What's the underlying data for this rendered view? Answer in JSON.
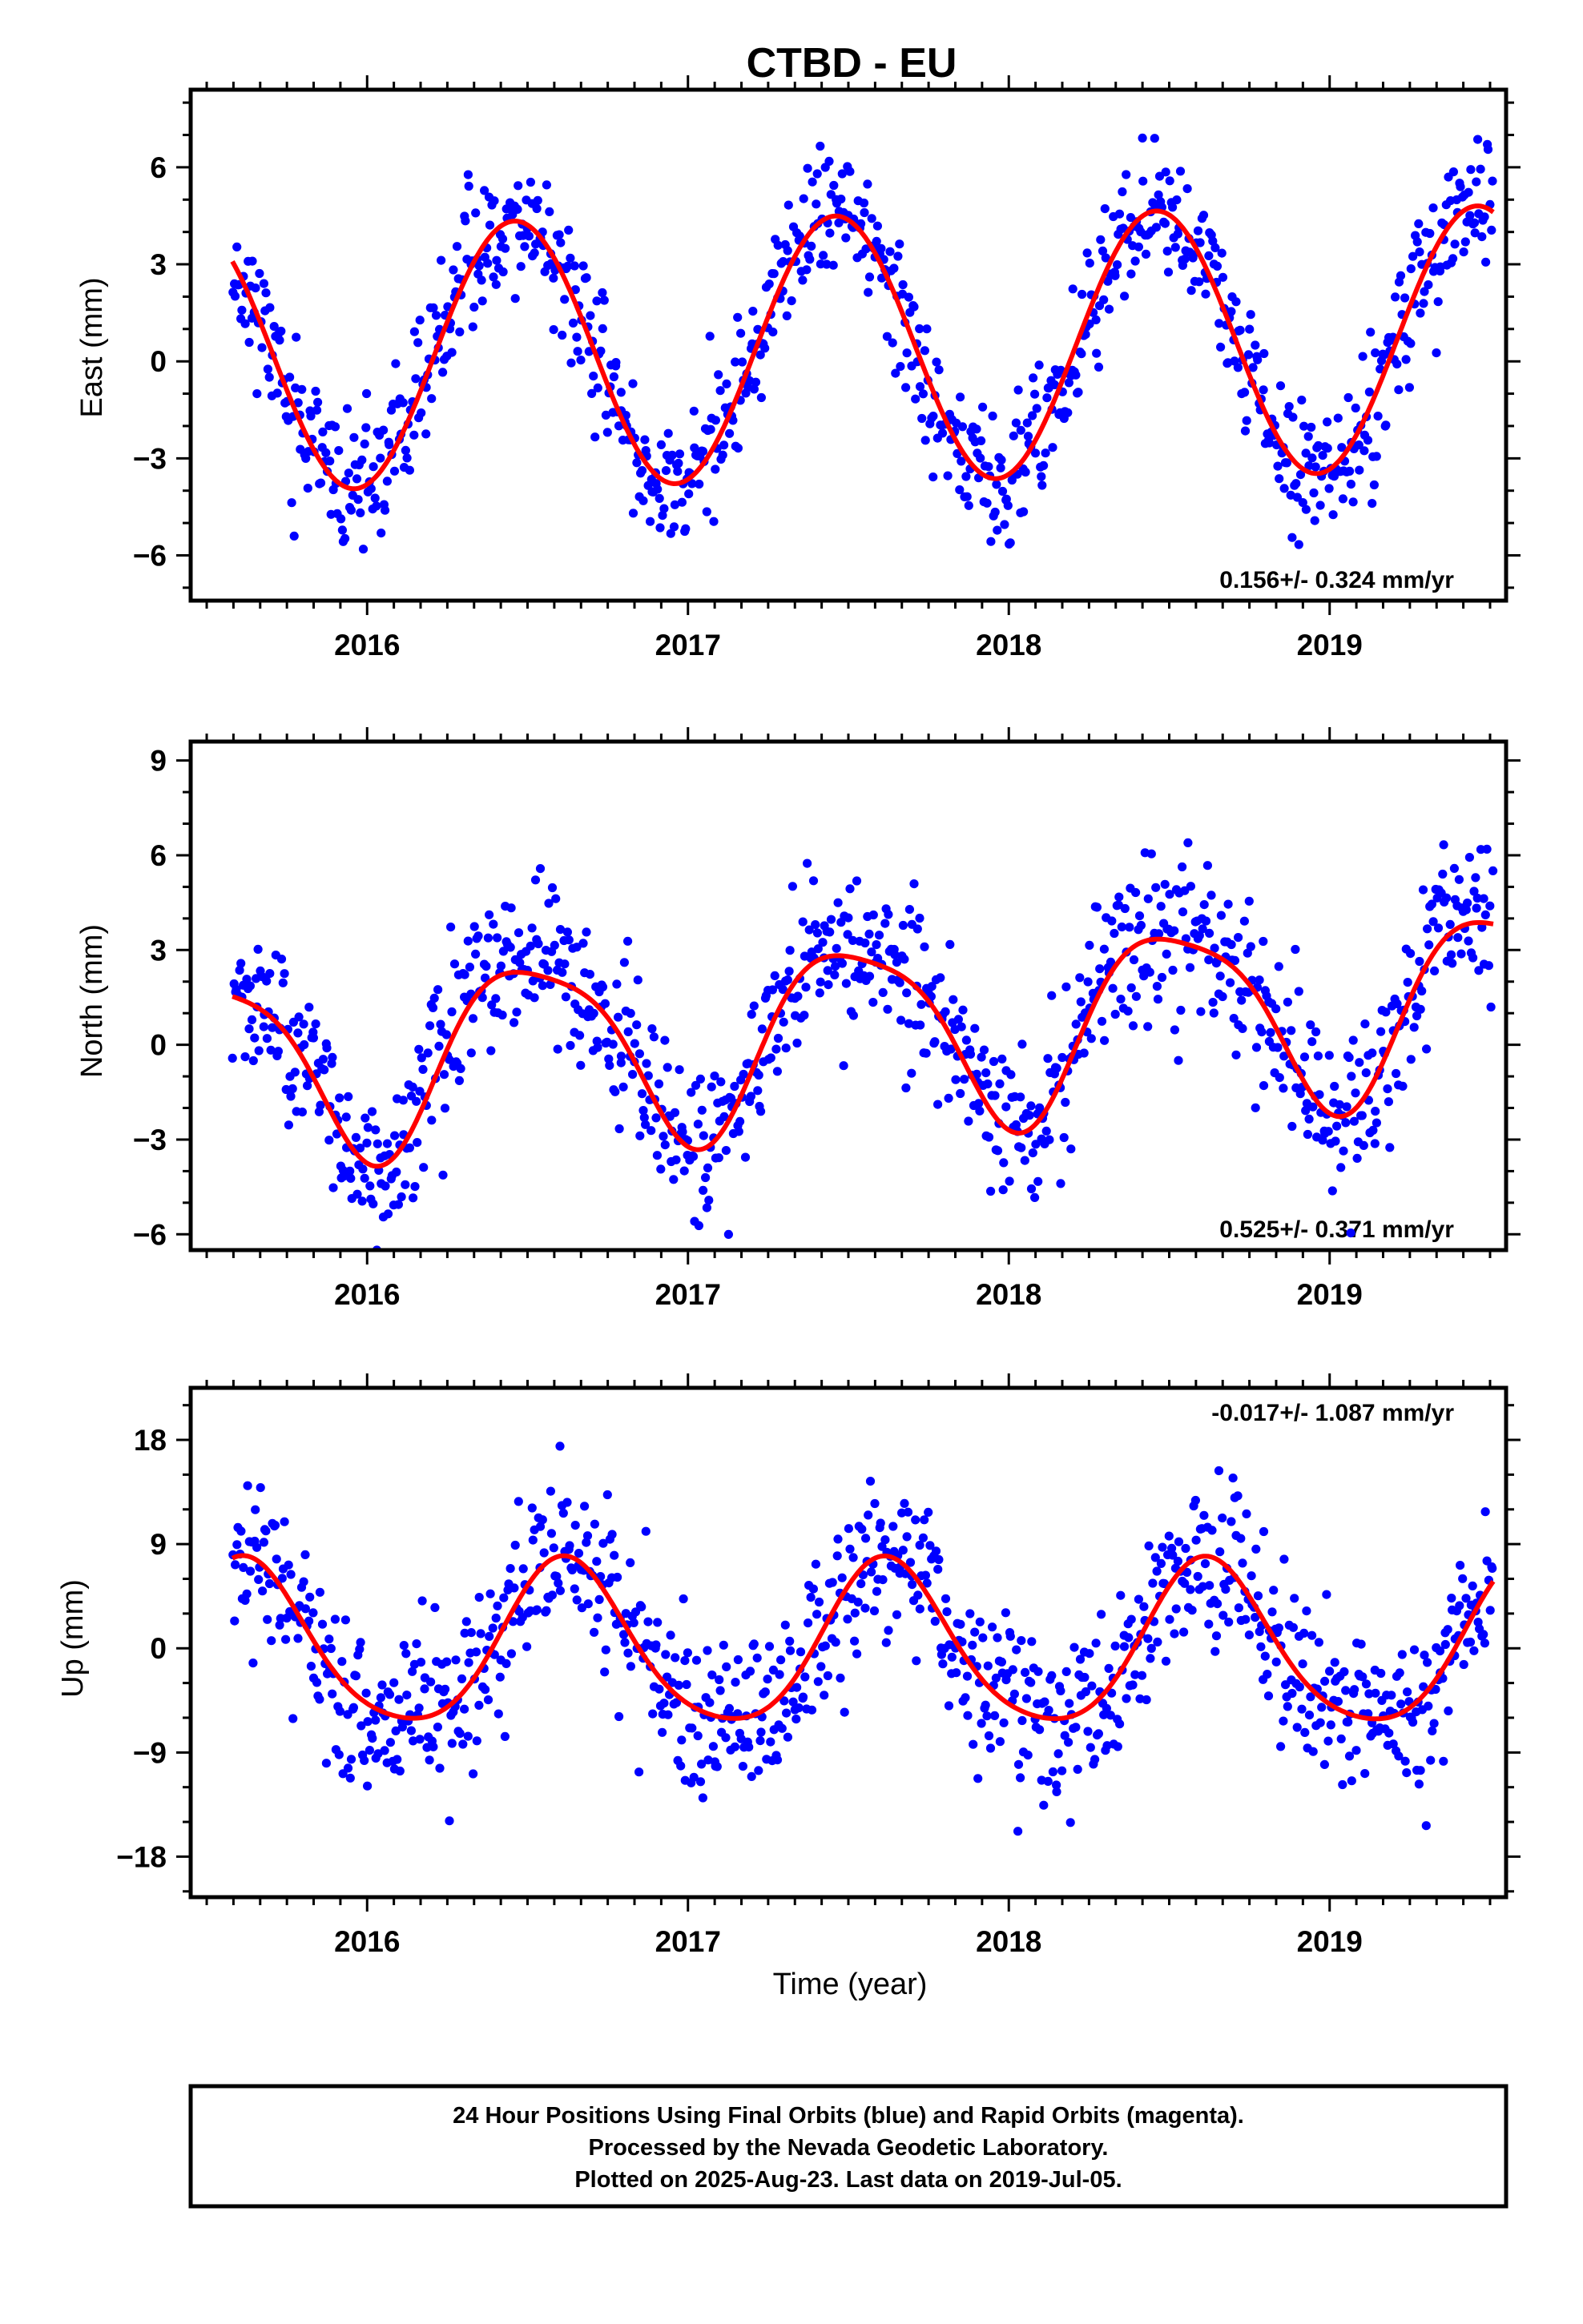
{
  "page": {
    "title": "CTBD - EU"
  },
  "footer": {
    "lines": [
      "24 Hour Positions Using Final Orbits (blue) and Rapid Orbits (magenta).",
      "Processed by the Nevada Geodetic Laboratory.",
      "Plotted on 2025-Aug-23. Last data on 2019-Jul-05."
    ]
  },
  "colors": {
    "final_orbits": "#0000ff",
    "fit_line": "#ff0000",
    "frame": "#000000"
  },
  "chart_data": [
    {
      "type": "scatter",
      "title": "CTBD - EU",
      "xlabel": "",
      "ylabel": "East (mm)",
      "xlim": [
        2015.45,
        2019.55
      ],
      "ylim": [
        -7.4,
        8.4
      ],
      "xticks": [
        2016,
        2017,
        2018,
        2019
      ],
      "yticks": [
        -6,
        -3,
        0,
        3,
        6
      ],
      "ytick_labels": [
        "−6",
        "−3",
        "0",
        "3",
        "6"
      ],
      "rate_label": "0.156+/- 0.324 mm/yr",
      "rate_position": "bottom-right",
      "legend": "none",
      "grid": false,
      "model": {
        "offset": 0.4,
        "velocity": 0.156,
        "annual_amplitude": 4.1,
        "annual_peak": 0.46,
        "semiannual_amplitude": 0.0,
        "semiannual_peak": 0.0,
        "ref_epoch": 2017.5
      },
      "scatter": {
        "sigma": 1.05,
        "count": 950,
        "seed": 11,
        "start": 2015.58,
        "end": 2019.51
      },
      "series": [
        {
          "name": "",
          "role": "daily_positions",
          "color": "#0000ff"
        },
        {
          "name": "",
          "role": "model_fit",
          "color": "#ff0000"
        }
      ]
    },
    {
      "type": "scatter",
      "xlabel": "",
      "ylabel": "North (mm)",
      "xlim": [
        2015.45,
        2019.55
      ],
      "ylim": [
        -6.5,
        9.6
      ],
      "xticks": [
        2016,
        2017,
        2018,
        2019
      ],
      "yticks": [
        -6,
        -3,
        0,
        3,
        6,
        9
      ],
      "ytick_labels": [
        "−6",
        "−3",
        "0",
        "3",
        "6",
        "9"
      ],
      "rate_label": "0.525+/- 0.371 mm/yr",
      "rate_position": "bottom-right",
      "legend": "none",
      "grid": false,
      "model": {
        "offset": 0.4,
        "velocity": 0.525,
        "annual_amplitude": 2.9,
        "annual_peak": 0.52,
        "semiannual_amplitude": 0.6,
        "semiannual_peak": 0.3,
        "ref_epoch": 2017.5
      },
      "scatter": {
        "sigma": 1.25,
        "count": 950,
        "seed": 23,
        "start": 2015.58,
        "end": 2019.51
      },
      "series": [
        {
          "name": "",
          "role": "daily_positions",
          "color": "#0000ff"
        },
        {
          "name": "",
          "role": "model_fit",
          "color": "#ff0000"
        }
      ]
    },
    {
      "type": "scatter",
      "xlabel": "Time (year)",
      "ylabel": "Up (mm)",
      "xlim": [
        2015.45,
        2019.55
      ],
      "ylim": [
        -21.5,
        22.5
      ],
      "xticks": [
        2016,
        2017,
        2018,
        2019
      ],
      "yticks": [
        -18,
        -9,
        0,
        9,
        18
      ],
      "ytick_labels": [
        "−18",
        "−9",
        "0",
        "9",
        "18"
      ],
      "rate_label": "-0.017+/- 1.087 mm/yr",
      "rate_position": "top-right",
      "legend": "none",
      "grid": false,
      "model": {
        "offset": 0.0,
        "velocity": -0.017,
        "annual_amplitude": 7.0,
        "annual_peak": 0.62,
        "semiannual_amplitude": 1.0,
        "semiannual_peak": 0.1,
        "ref_epoch": 2017.5
      },
      "scatter": {
        "sigma": 3.6,
        "count": 950,
        "seed": 37,
        "start": 2015.58,
        "end": 2019.51
      },
      "series": [
        {
          "name": "",
          "role": "daily_positions",
          "color": "#0000ff"
        },
        {
          "name": "",
          "role": "model_fit",
          "color": "#ff0000"
        }
      ]
    }
  ]
}
